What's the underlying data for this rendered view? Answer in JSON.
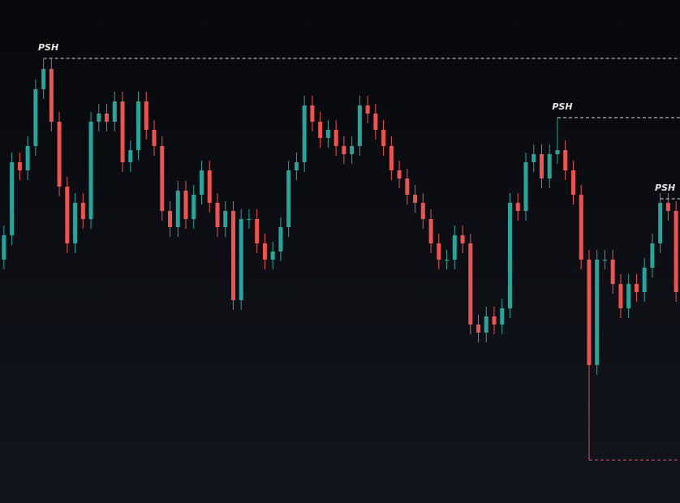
{
  "chart_data": {
    "type": "candlestick",
    "up_color": "#26a69a",
    "down_color": "#ef5350",
    "ylim": [
      0,
      620
    ],
    "open": [
      300,
      330,
      420,
      410,
      440,
      510,
      535,
      470,
      390,
      320,
      370,
      350,
      470,
      480,
      470,
      495,
      420,
      435,
      495,
      460,
      440,
      360,
      340,
      385,
      350,
      380,
      410,
      370,
      340,
      360,
      250,
      350,
      350,
      320,
      300,
      310,
      340,
      410,
      420,
      490,
      470,
      450,
      460,
      440,
      430,
      440,
      490,
      480,
      460,
      440,
      410,
      400,
      380,
      370,
      350,
      320,
      300,
      300,
      330,
      320,
      220,
      210,
      230,
      220,
      240,
      370,
      360,
      420,
      430,
      400,
      430,
      435,
      410,
      380,
      300,
      170,
      300,
      300,
      270,
      240,
      270,
      260,
      290,
      320,
      370,
      360
    ],
    "high": [
      342,
      432,
      432,
      452,
      522,
      547,
      547,
      482,
      402,
      382,
      382,
      482,
      492,
      492,
      507,
      507,
      447,
      507,
      507,
      472,
      452,
      372,
      397,
      397,
      392,
      422,
      422,
      382,
      372,
      372,
      362,
      362,
      362,
      332,
      322,
      352,
      422,
      432,
      502,
      502,
      482,
      472,
      472,
      452,
      452,
      502,
      502,
      492,
      472,
      452,
      422,
      412,
      392,
      382,
      362,
      332,
      312,
      342,
      342,
      332,
      232,
      242,
      242,
      252,
      382,
      382,
      432,
      442,
      442,
      442,
      475,
      447,
      422,
      392,
      312,
      312,
      312,
      312,
      282,
      282,
      282,
      302,
      332,
      382,
      382,
      372
    ],
    "low": [
      288,
      318,
      398,
      398,
      428,
      498,
      458,
      378,
      308,
      308,
      338,
      338,
      458,
      458,
      458,
      408,
      408,
      423,
      448,
      428,
      348,
      328,
      328,
      338,
      338,
      368,
      358,
      328,
      328,
      238,
      238,
      338,
      308,
      288,
      288,
      298,
      328,
      398,
      408,
      458,
      438,
      438,
      428,
      418,
      418,
      428,
      468,
      448,
      428,
      398,
      388,
      368,
      358,
      338,
      308,
      288,
      288,
      288,
      308,
      208,
      198,
      198,
      208,
      208,
      228,
      348,
      348,
      408,
      388,
      388,
      418,
      398,
      368,
      288,
      158,
      158,
      288,
      258,
      228,
      228,
      248,
      248,
      278,
      308,
      348,
      248
    ],
    "close": [
      330,
      420,
      410,
      440,
      510,
      535,
      470,
      390,
      320,
      370,
      350,
      470,
      480,
      470,
      495,
      420,
      435,
      495,
      460,
      440,
      360,
      340,
      385,
      350,
      380,
      410,
      370,
      340,
      360,
      250,
      350,
      350,
      320,
      300,
      310,
      340,
      410,
      420,
      490,
      470,
      450,
      460,
      440,
      430,
      440,
      490,
      480,
      460,
      440,
      410,
      400,
      380,
      370,
      350,
      320,
      300,
      300,
      330,
      320,
      220,
      210,
      230,
      220,
      240,
      370,
      360,
      420,
      430,
      400,
      430,
      435,
      410,
      380,
      300,
      170,
      300,
      300,
      270,
      240,
      270,
      260,
      290,
      320,
      370,
      360,
      260
    ],
    "levels": [
      {
        "label": "PSH",
        "value": 548,
        "start": 5,
        "color": "#d8d8d8"
      },
      {
        "label": "PSH",
        "value": 475,
        "start": 70,
        "color": "#d8d8d8"
      },
      {
        "label": "PSH",
        "value": 375,
        "start": 83,
        "color": "#d8d8d8"
      },
      {
        "value": 53,
        "start": 74,
        "color": "#e0555a"
      }
    ]
  }
}
